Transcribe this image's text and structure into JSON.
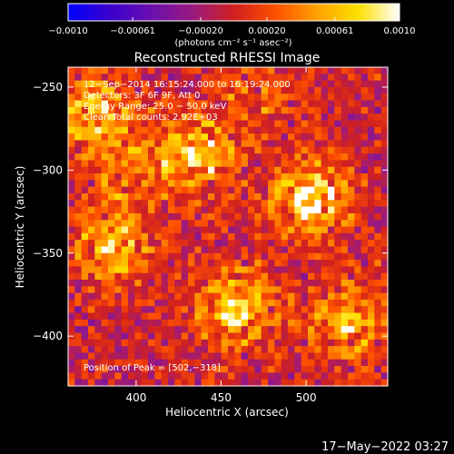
{
  "chart_data": {
    "type": "heatmap",
    "title": "Reconstructed RHESSI Image",
    "xlabel": "Heliocentric X (arcsec)",
    "ylabel": "Heliocentric Y (arcsec)",
    "xlim": [
      360,
      548
    ],
    "ylim": [
      -430,
      -238
    ],
    "x_ticks": [
      {
        "value": 400,
        "label": "400"
      },
      {
        "value": 450,
        "label": "450"
      },
      {
        "value": 500,
        "label": "500"
      }
    ],
    "y_ticks": [
      {
        "value": -250,
        "label": "−250"
      },
      {
        "value": -300,
        "label": "−300"
      },
      {
        "value": -350,
        "label": "−350"
      },
      {
        "value": -400,
        "label": "−400"
      }
    ],
    "annotations": [
      "12−Sep−2014 16:15:24.000 to 16:19:24.000",
      "Detectors: 3F 6F 9F, Att 0",
      "Energy Range: 25.0 − 50.0 keV",
      "Clean     Total counts: 2.92E+03"
    ],
    "peak_label": "Position of Peak = [502,−318]",
    "peak": {
      "x": 502,
      "y": -318
    },
    "colorbar": {
      "min": -0.001,
      "max": 0.001,
      "ticks": [
        {
          "value": -0.001,
          "label": "−0.0010"
        },
        {
          "value": -0.00061,
          "label": "−0.00061"
        },
        {
          "value": -0.0002,
          "label": "−0.00020"
        },
        {
          "value": 0.0002,
          "label": "0.00020"
        },
        {
          "value": 0.00061,
          "label": "0.00061"
        },
        {
          "value": 0.001,
          "label": "0.0010"
        }
      ],
      "unit_label": "(photons cm⁻² s⁻¹ asec⁻²)",
      "colors": [
        "#0000ff",
        "#3a00cc",
        "#6a0fb0",
        "#9a1a80",
        "#d02020",
        "#ff5000",
        "#ffa000",
        "#ffe000",
        "#ffffff"
      ]
    },
    "sources": [
      {
        "x": 375,
        "y": -265,
        "intensity": 0.8
      },
      {
        "x": 385,
        "y": -345,
        "intensity": 0.75
      },
      {
        "x": 435,
        "y": -290,
        "intensity": 0.8
      },
      {
        "x": 502,
        "y": -318,
        "intensity": 1.0
      },
      {
        "x": 460,
        "y": -383,
        "intensity": 0.9
      },
      {
        "x": 525,
        "y": -390,
        "intensity": 0.7
      },
      {
        "x": 398,
        "y": -300,
        "intensity": 0.45
      },
      {
        "x": 470,
        "y": -255,
        "intensity": 0.35
      }
    ],
    "grid": false
  },
  "footer": {
    "timestamp": "17−May−2022 03:27"
  }
}
